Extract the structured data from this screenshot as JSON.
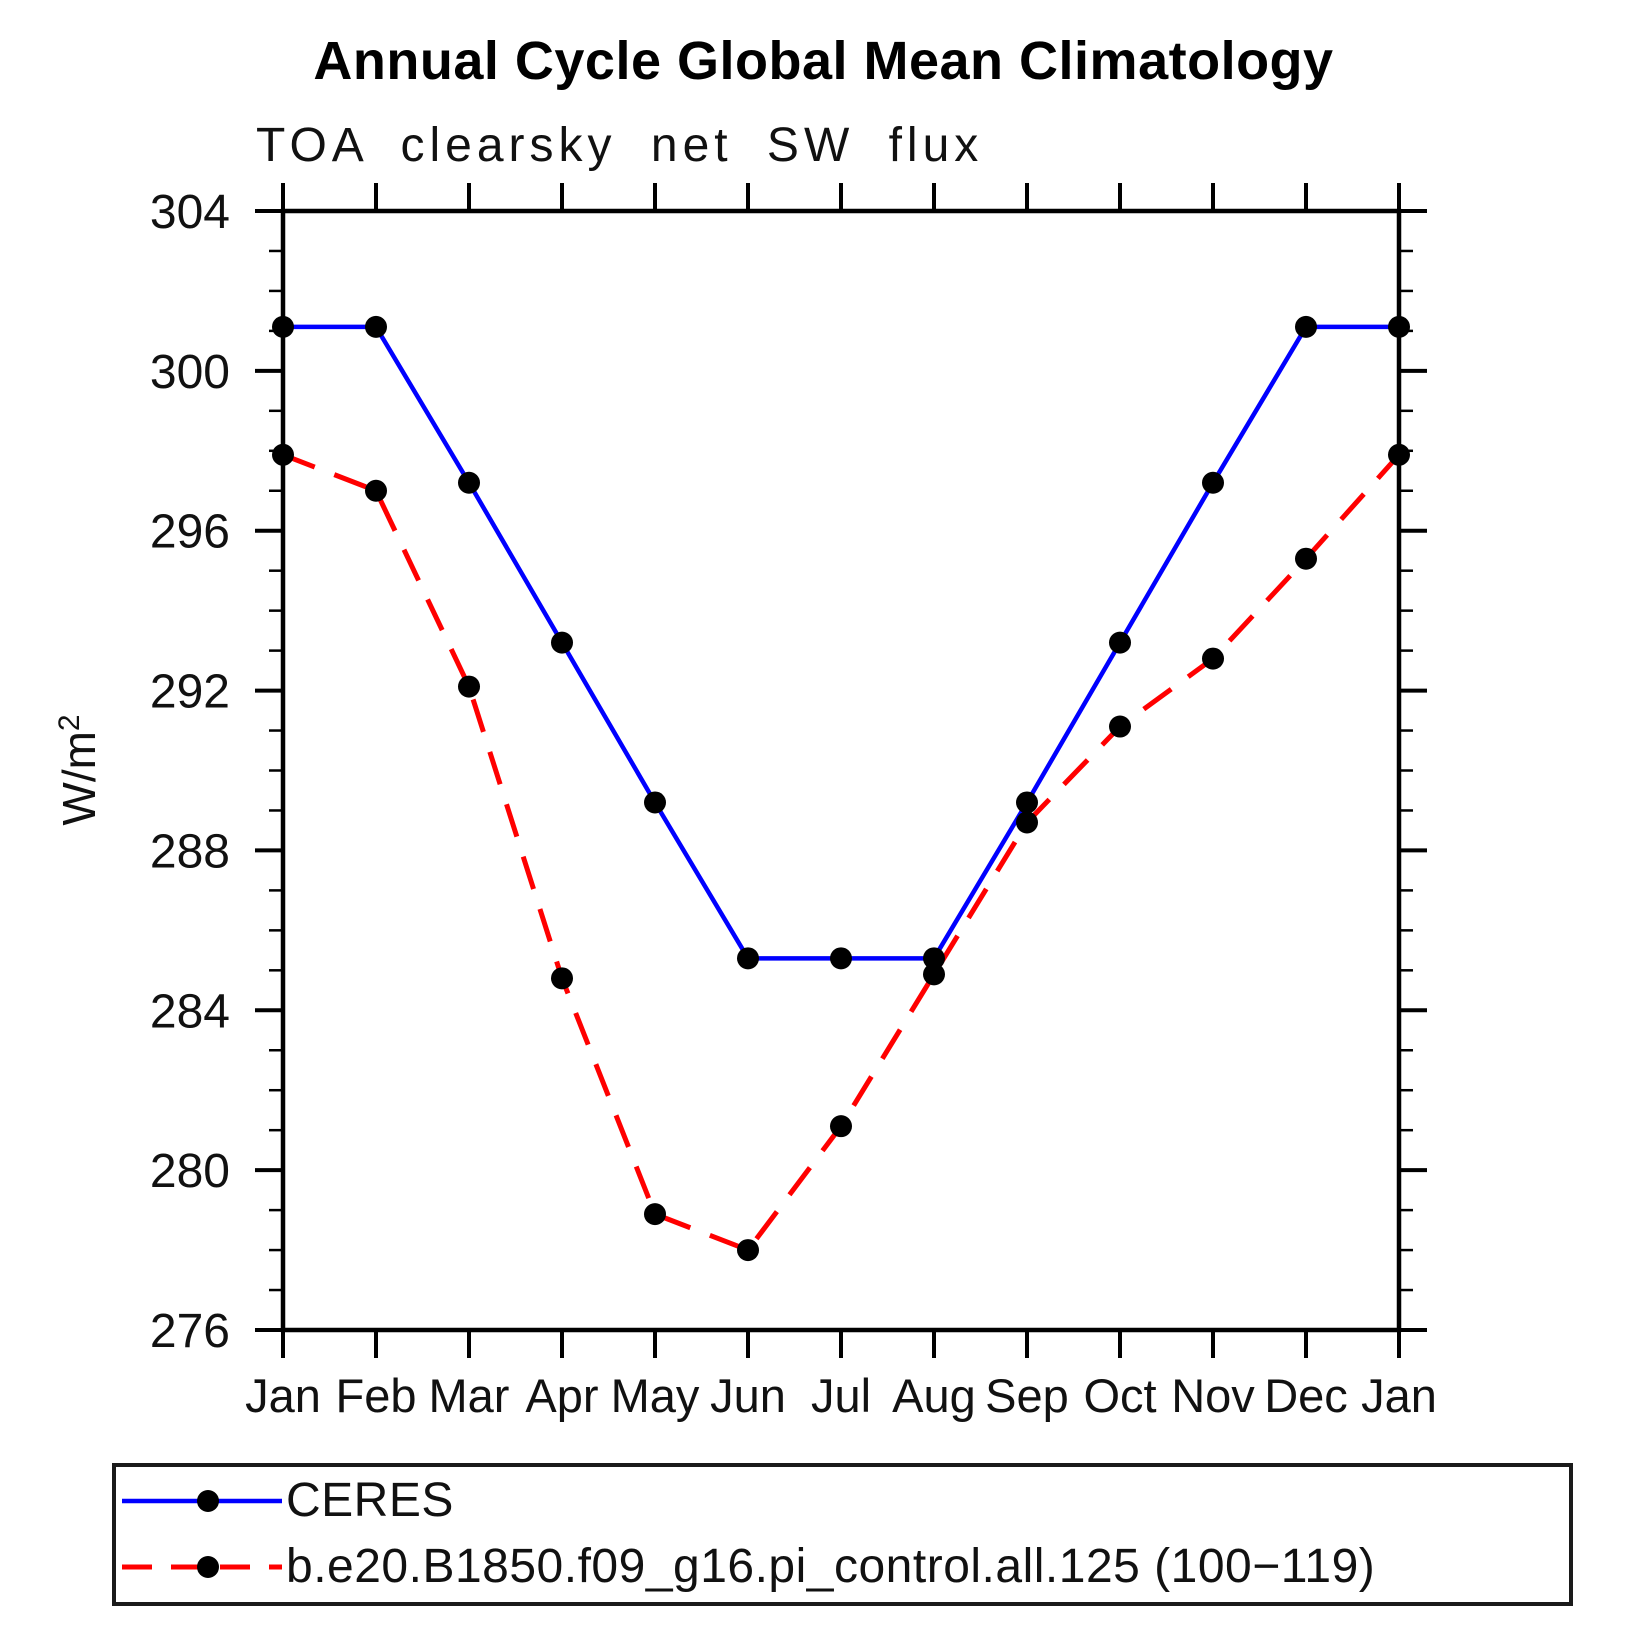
{
  "header": {
    "title": "Annual Cycle Global Mean Climatology"
  },
  "chart": {
    "subtitle": "TOA clearsky net SW flux",
    "y_axis_label": {
      "prefix": "W/m",
      "superscript": "2"
    }
  },
  "chart_data": {
    "type": "line",
    "title": "Annual Cycle Global Mean Climatology",
    "subtitle": "TOA clearsky net SW flux",
    "xlabel": "",
    "ylabel": "W/m2",
    "categories": [
      "Jan",
      "Feb",
      "Mar",
      "Apr",
      "May",
      "Jun",
      "Jul",
      "Aug",
      "Sep",
      "Oct",
      "Nov",
      "Dec",
      "Jan"
    ],
    "ylim": [
      276,
      304
    ],
    "y_tick_major_step": 4,
    "y_tick_minor_step": 1,
    "y_tick_labels": [
      "276",
      "280",
      "284",
      "288",
      "292",
      "296",
      "300",
      "304"
    ],
    "grid": false,
    "legend_position": "bottom-left-box",
    "series": [
      {
        "name": "CERES",
        "color": "#0000ff",
        "line_style": "solid",
        "marker": "filled-circle",
        "marker_color": "#000000",
        "values": [
          301.1,
          301.1,
          297.2,
          293.2,
          289.2,
          285.3,
          285.3,
          285.3,
          289.2,
          293.2,
          297.2,
          301.1,
          301.1
        ]
      },
      {
        "name": "b.e20.B1850.f09_g16.pi_control.all.125 (100−119)",
        "color": "#ff0000",
        "line_style": "dashed",
        "marker": "filled-circle",
        "marker_color": "#000000",
        "values": [
          297.9,
          297.0,
          292.1,
          284.8,
          278.9,
          278.0,
          281.1,
          284.9,
          288.7,
          291.1,
          292.8,
          295.3,
          297.9
        ]
      }
    ]
  }
}
